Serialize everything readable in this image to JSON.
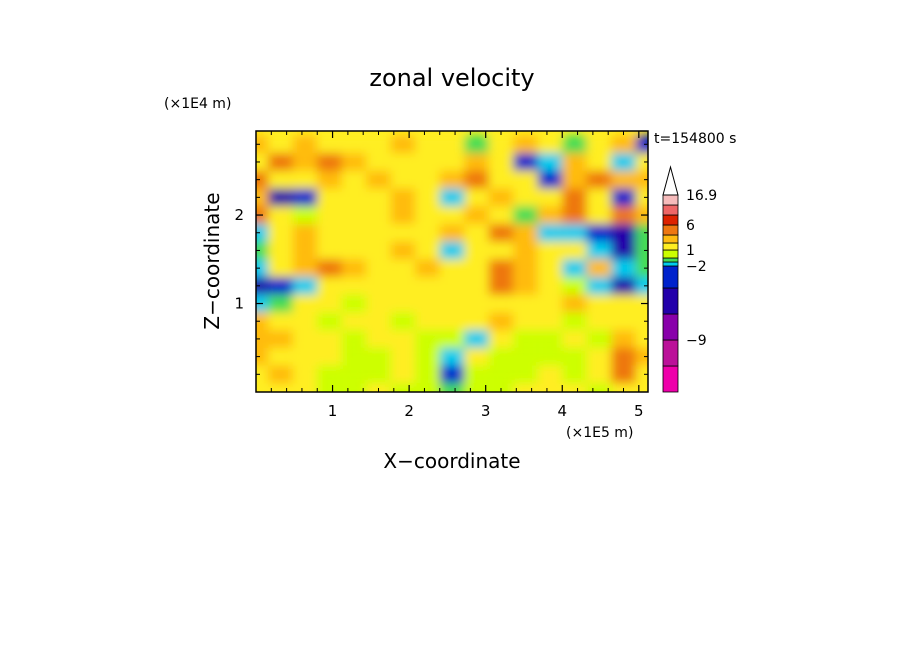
{
  "chart_data": {
    "type": "heatmap",
    "title": "zonal velocity",
    "xlabel": "X−coordinate",
    "ylabel": "Z−coordinate",
    "x_scale_label": "(×1E5 m)",
    "y_scale_label": "(×1E4 m)",
    "time_label": "t=154800 s",
    "xlim": [
      0.0,
      5.12
    ],
    "ylim": [
      0.0,
      2.95
    ],
    "x_ticks": [
      1,
      2,
      3,
      4,
      5
    ],
    "x_tick_labels": [
      "1",
      "2",
      "3",
      "4",
      "5"
    ],
    "y_ticks": [
      1,
      2
    ],
    "y_tick_labels": [
      "1",
      "2"
    ],
    "colorbar": {
      "levels": [
        -16.9,
        -12,
        -9,
        -6,
        -3,
        -2,
        -1,
        0,
        1,
        2,
        3,
        6,
        9,
        12,
        16.9
      ],
      "colors": [
        "#ee00aa",
        "#bb1199",
        "#8800aa",
        "#2200aa",
        "#0022cc",
        "#00ccee",
        "#44dd55",
        "#ccff00",
        "#ffee22",
        "#ffbb11",
        "#ee7711",
        "#dd2200",
        "#ee6666",
        "#f6bbbb"
      ],
      "labeled_ticks": [
        16.9,
        6,
        1,
        -2,
        -9
      ],
      "labeled_tick_text": [
        "16.9",
        "6",
        "1",
        "−2",
        "−9"
      ],
      "extend": "max"
    },
    "field_description_values": {
      "x": [
        0.0,
        0.32,
        0.64,
        0.96,
        1.28,
        1.6,
        1.92,
        2.24,
        2.56,
        2.88,
        3.2,
        3.52,
        3.84,
        4.16,
        4.48,
        4.8,
        5.12
      ],
      "z": [
        0.0,
        0.2,
        0.4,
        0.6,
        0.8,
        1.0,
        1.2,
        1.4,
        1.6,
        1.8,
        2.0,
        2.2,
        2.4,
        2.6,
        2.8
      ],
      "u": [
        [
          1,
          1,
          1,
          0.5,
          0.5,
          1,
          0.5,
          0.5,
          -1,
          0.5,
          0.5,
          1,
          1,
          1,
          0.5,
          1,
          1
        ],
        [
          1.5,
          2,
          1,
          0.5,
          0.5,
          0.5,
          1,
          0.5,
          -3,
          0.5,
          0.5,
          0.5,
          1,
          0.5,
          1,
          3,
          1
        ],
        [
          2,
          1.5,
          1.5,
          1,
          0.5,
          0.5,
          1,
          0.5,
          -1.5,
          1,
          0.5,
          0.5,
          0.5,
          0.5,
          1,
          4,
          2
        ],
        [
          2.5,
          2,
          1,
          1,
          0.5,
          1,
          1,
          0.5,
          0.5,
          -1.5,
          1,
          0.5,
          0.5,
          1,
          0.5,
          2,
          1
        ],
        [
          2,
          1.5,
          1,
          0.5,
          1,
          1,
          0.5,
          1,
          1,
          1.5,
          2.5,
          1,
          1.5,
          0.5,
          1,
          1,
          1
        ],
        [
          -1.5,
          -0.5,
          1,
          1,
          0.5,
          1,
          1.5,
          1,
          1.5,
          1,
          1.5,
          1,
          1,
          2,
          1,
          1,
          1
        ],
        [
          -4,
          -3,
          -1.5,
          1,
          1.5,
          1,
          1,
          1.5,
          1,
          1.5,
          4,
          2,
          1,
          0.5,
          -1.5,
          -4,
          -2
        ],
        [
          -2,
          1,
          2.5,
          3,
          2,
          1.5,
          1.5,
          2.5,
          1,
          1.5,
          3,
          2.5,
          1.5,
          -1.5,
          2,
          -1.5,
          -0.5
        ],
        [
          -0.5,
          1.5,
          2,
          1.5,
          1.5,
          1,
          2,
          1.5,
          -1.5,
          1.5,
          1,
          2.5,
          1.5,
          1.5,
          -2,
          -4,
          -1
        ],
        [
          -1.5,
          1.5,
          2,
          1,
          1.5,
          1.5,
          1.5,
          1,
          2,
          1,
          3,
          2,
          -1.5,
          -2,
          -3,
          -4,
          -1
        ],
        [
          3,
          1.5,
          0.5,
          1,
          1,
          1.5,
          2,
          1,
          1.5,
          2,
          1,
          -0.5,
          2.5,
          3,
          1.5,
          3,
          2
        ],
        [
          2,
          -4,
          -3,
          1,
          1.5,
          1.5,
          2,
          1,
          -1.5,
          1,
          2.5,
          1.5,
          1,
          3.5,
          1.5,
          -3,
          1
        ],
        [
          3,
          1.5,
          1.5,
          2,
          1,
          2.5,
          1.5,
          1,
          2,
          3,
          1,
          1.5,
          -3,
          2,
          3.5,
          2,
          2
        ],
        [
          1.5,
          3,
          2,
          3,
          2,
          1.5,
          1,
          1.5,
          1.5,
          2,
          1.5,
          -3,
          -1.5,
          2.5,
          1.5,
          -1.5,
          1.5
        ],
        [
          2,
          1.5,
          2,
          1.5,
          1,
          1.5,
          2,
          1.5,
          1,
          -1,
          1.5,
          2,
          1.5,
          -0.5,
          1.5,
          2,
          -3
        ]
      ]
    }
  }
}
